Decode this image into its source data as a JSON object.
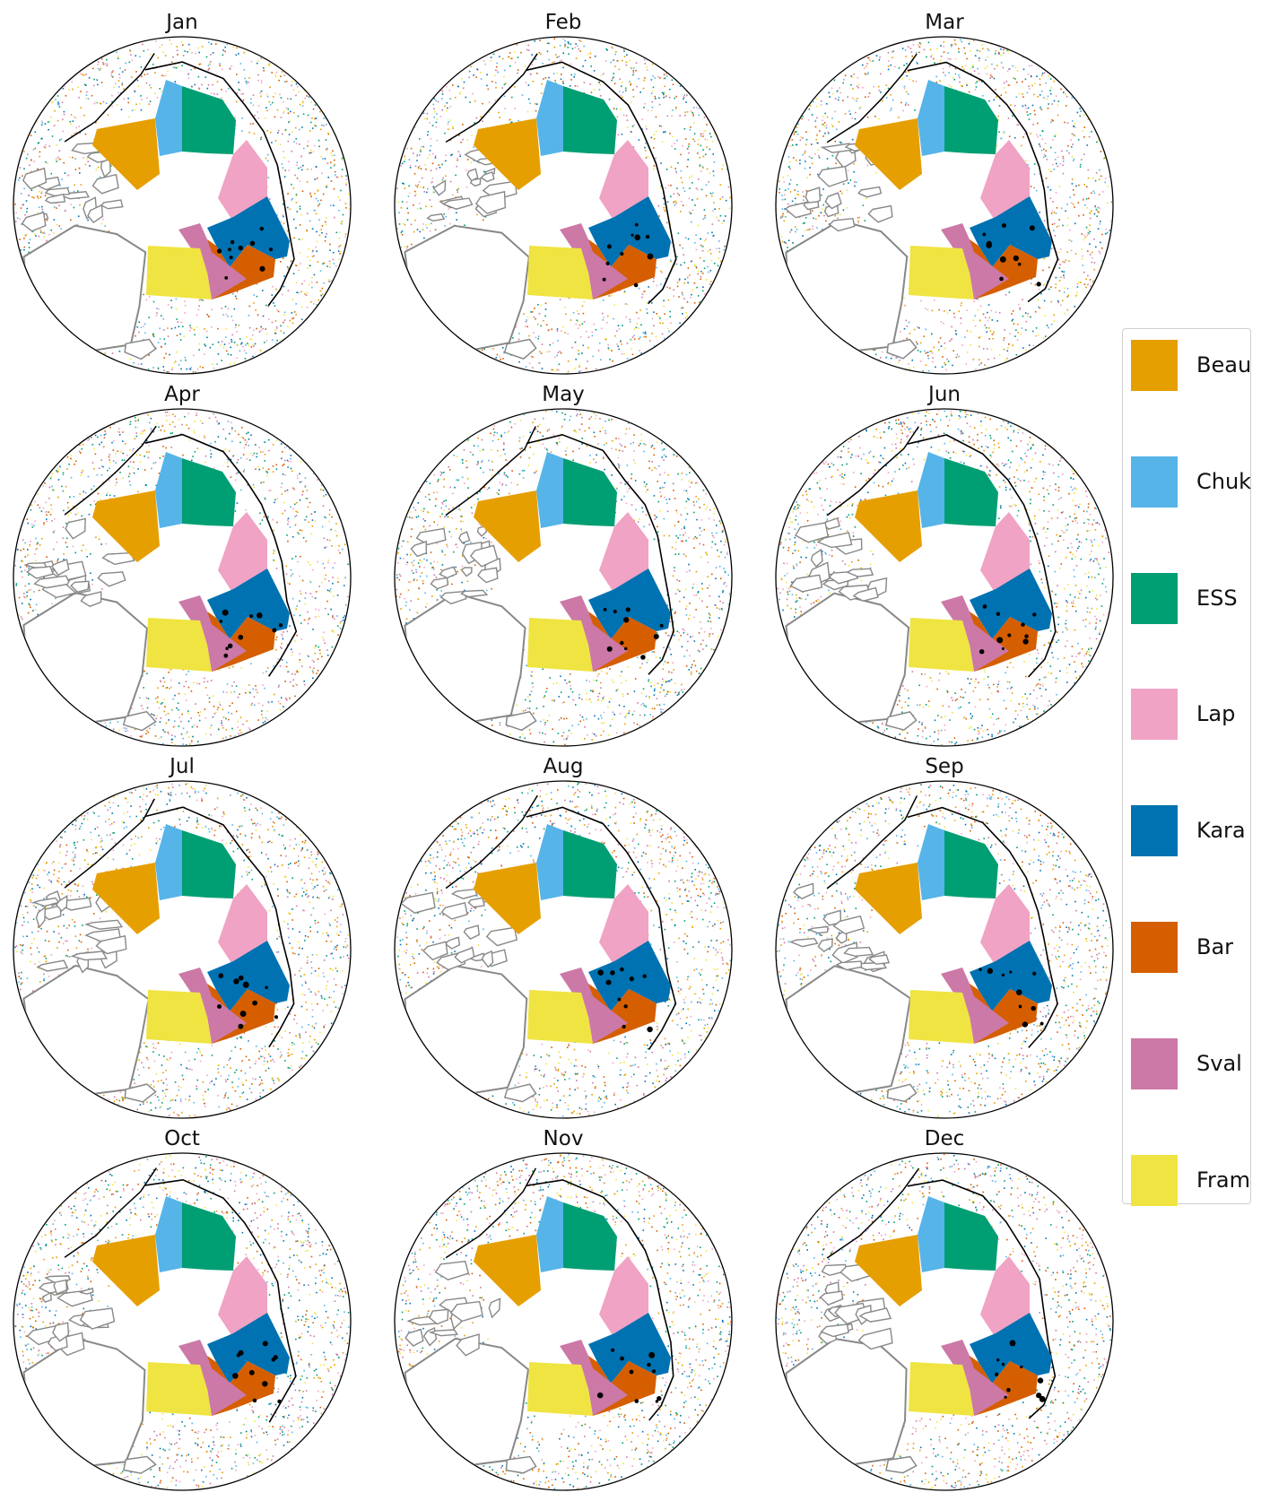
{
  "months": [
    {
      "label": "Jan"
    },
    {
      "label": "Feb"
    },
    {
      "label": "Mar"
    },
    {
      "label": "Apr"
    },
    {
      "label": "May"
    },
    {
      "label": "Jun"
    },
    {
      "label": "Jul"
    },
    {
      "label": "Aug"
    },
    {
      "label": "Sep"
    },
    {
      "label": "Oct"
    },
    {
      "label": "Nov"
    },
    {
      "label": "Dec"
    }
  ],
  "legend": [
    {
      "label": "Beau",
      "color": "#E69F00"
    },
    {
      "label": "Chuk",
      "color": "#56B4E9"
    },
    {
      "label": "ESS",
      "color": "#009E73"
    },
    {
      "label": "Lap",
      "color": "#F0A3C4"
    },
    {
      "label": "Kara",
      "color": "#0072B2"
    },
    {
      "label": "Bar",
      "color": "#D55E00"
    },
    {
      "label": "Sval",
      "color": "#CC79A7"
    },
    {
      "label": "Fram",
      "color": "#F0E442"
    }
  ],
  "colors": {
    "coastline": "#000000",
    "land_outline": "#888888",
    "map_border": "#000000"
  }
}
